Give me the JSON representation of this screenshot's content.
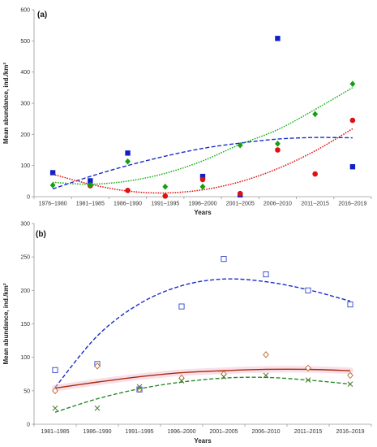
{
  "chart_data": [
    {
      "type": "scatter",
      "panel_label": "(a)",
      "xlabel": "Years",
      "ylabel": "Mean abundance, ind./km²",
      "ylim": [
        0,
        600
      ],
      "yticks": [
        0,
        100,
        200,
        300,
        400,
        500,
        600
      ],
      "grid": false,
      "categories": [
        "1976–1980",
        "1981–1985",
        "1986–1990",
        "1991–1995",
        "1996–2000",
        "2001–2005",
        "2006–2010",
        "2011–2015",
        "2016–2019"
      ],
      "series": [
        {
          "marker": "square",
          "color": "#1020c8",
          "values": [
            77,
            51,
            140,
            null,
            65,
            6,
            508,
            null,
            96
          ],
          "trend": {
            "style": "dashed",
            "color": "#1a2cc8",
            "values": [
              25,
              65,
              100,
              130,
              155,
              172,
              185,
              190,
              189
            ]
          }
        },
        {
          "marker": "circle",
          "color": "#e01010",
          "values": [
            null,
            35,
            20,
            2,
            55,
            10,
            150,
            73,
            245
          ],
          "trend": {
            "style": "dotted",
            "color": "#e01010",
            "values": [
              72,
              40,
              18,
              12,
              22,
              48,
              90,
              147,
              218
            ]
          }
        },
        {
          "marker": "diamond",
          "color": "#10a010",
          "values": [
            37,
            37,
            113,
            32,
            32,
            165,
            170,
            265,
            362
          ],
          "trend": {
            "style": "dotted",
            "color": "#22b022",
            "values": [
              46,
              40,
              50,
              75,
              115,
              168,
              215,
              280,
              350
            ]
          }
        }
      ]
    },
    {
      "type": "scatter",
      "panel_label": "(b)",
      "xlabel": "Years",
      "ylabel": "Mean abundance, ind./km²",
      "ylim": [
        0,
        300
      ],
      "yticks": [
        0,
        50,
        100,
        150,
        200,
        250,
        300
      ],
      "grid": false,
      "categories": [
        "1981–1985",
        "1986–1990",
        "1991–1995",
        "1996–2000",
        "2001–2005",
        "2006–2010",
        "2011–2015",
        "2016–2019"
      ],
      "series": [
        {
          "marker": "open-square",
          "color": "#3344cc",
          "values": [
            81,
            90,
            52,
            176,
            247,
            224,
            200,
            179
          ],
          "trend": {
            "style": "dashed",
            "color": "#1a2cc8",
            "values": [
              55,
              132,
              180,
              207,
              217,
              213,
              201,
              184
            ]
          }
        },
        {
          "marker": "open-diamond",
          "color": "#b06a30",
          "values": [
            50,
            87,
            52,
            69,
            75,
            104,
            84,
            73
          ],
          "trend": {
            "style": "solid",
            "color": "#a82a10",
            "band_color": "#f4c4d4",
            "values": [
              54,
              63,
              71,
              77,
              80,
              82,
              82,
              80
            ]
          }
        },
        {
          "marker": "cross",
          "color": "#4a7a2a",
          "values": [
            24,
            24,
            56,
            65,
            71,
            73,
            66,
            60
          ],
          "trend": {
            "style": "dashed",
            "color": "#2a8a2a",
            "values": [
              18,
              38,
              53,
              63,
              69,
              70,
              66,
              60
            ]
          }
        }
      ]
    }
  ]
}
